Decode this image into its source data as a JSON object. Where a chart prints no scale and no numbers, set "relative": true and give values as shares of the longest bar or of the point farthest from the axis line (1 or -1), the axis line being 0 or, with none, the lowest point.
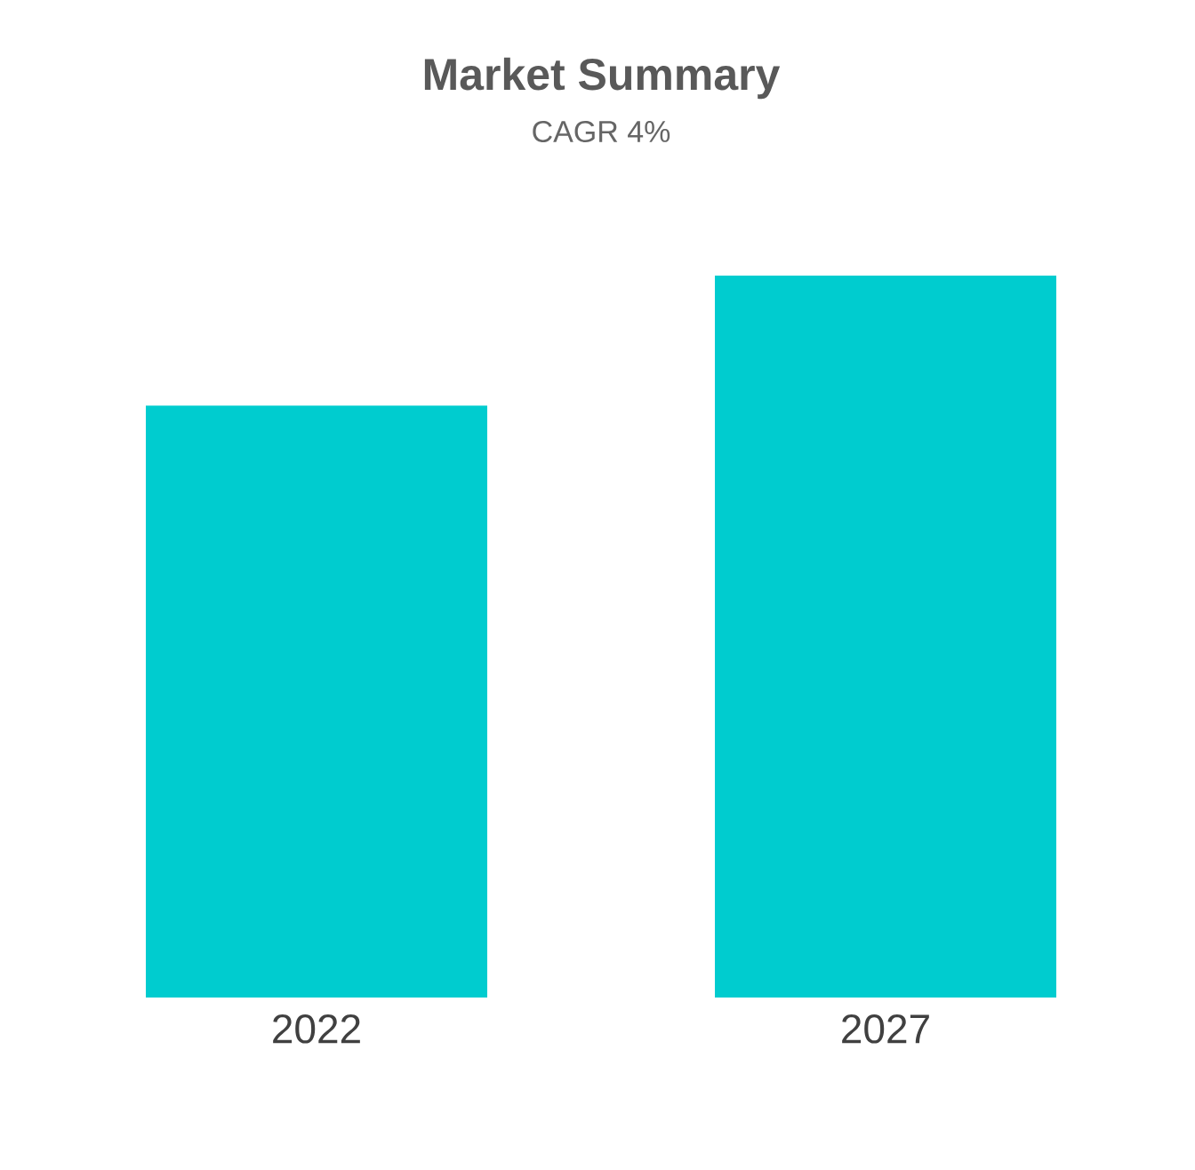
{
  "chart_data": {
    "type": "bar",
    "title": "Market Summary",
    "subtitle": "CAGR 4%",
    "categories": [
      "2022",
      "2027"
    ],
    "values": [
      0.82,
      1
    ],
    "color": "#00cccf",
    "relative": true
  }
}
